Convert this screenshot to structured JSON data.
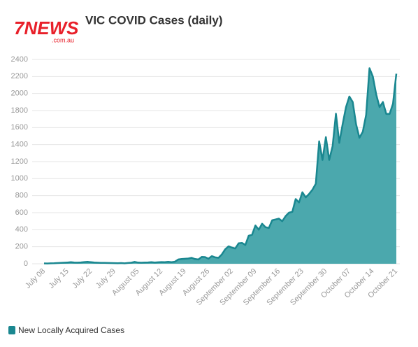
{
  "logo": {
    "brand": "7NEWS",
    "domain": ".com.au"
  },
  "chart_data": {
    "type": "area",
    "title": "VIC COVID Cases (daily)",
    "categories": [
      "July 08",
      null,
      null,
      null,
      null,
      null,
      null,
      "July 15",
      null,
      null,
      null,
      null,
      null,
      null,
      "July 22",
      null,
      null,
      null,
      null,
      null,
      null,
      "July 29",
      null,
      null,
      null,
      null,
      null,
      null,
      "August 05",
      null,
      null,
      null,
      null,
      null,
      null,
      "August 12",
      null,
      null,
      null,
      null,
      null,
      null,
      "August 19",
      null,
      null,
      null,
      null,
      null,
      null,
      "August 26",
      null,
      null,
      null,
      null,
      null,
      null,
      "September 02",
      null,
      null,
      null,
      null,
      null,
      null,
      "September 09",
      null,
      null,
      null,
      null,
      null,
      null,
      "September 16",
      null,
      null,
      null,
      null,
      null,
      null,
      "September 23",
      null,
      null,
      null,
      null,
      null,
      null,
      "September 30",
      null,
      null,
      null,
      null,
      null,
      null,
      "October 07",
      null,
      null,
      null,
      null,
      null,
      null,
      "October 14",
      null,
      null,
      null,
      null,
      null,
      null,
      "October 21"
    ],
    "series": [
      {
        "name": "New Locally Acquired Cases",
        "color": "#1a8790",
        "fill": "#4ba8ad",
        "values": [
          4,
          3,
          5,
          6,
          8,
          10,
          12,
          15,
          18,
          14,
          13,
          16,
          20,
          22,
          18,
          14,
          12,
          11,
          10,
          9,
          8,
          7,
          6,
          8,
          5,
          9,
          12,
          22,
          14,
          12,
          15,
          16,
          18,
          14,
          17,
          20,
          18,
          22,
          19,
          24,
          50,
          55,
          58,
          62,
          70,
          55,
          50,
          80,
          78,
          60,
          90,
          75,
          70,
          110,
          170,
          205,
          190,
          180,
          240,
          245,
          220,
          330,
          340,
          450,
          400,
          470,
          430,
          420,
          510,
          520,
          530,
          500,
          560,
          600,
          610,
          760,
          720,
          840,
          780,
          820,
          870,
          940,
          1438,
          1220,
          1488,
          1220,
          1380,
          1763,
          1420,
          1640,
          1840,
          1965,
          1900,
          1640,
          1480,
          1550,
          1750,
          2297,
          2200,
          1990,
          1840,
          1900,
          1760,
          1760,
          1880,
          2232
        ]
      }
    ],
    "ylim": [
      0,
      2400
    ],
    "yticks": [
      0,
      200,
      400,
      600,
      800,
      1000,
      1200,
      1400,
      1600,
      1800,
      2000,
      2200,
      2400
    ],
    "grid": true
  }
}
